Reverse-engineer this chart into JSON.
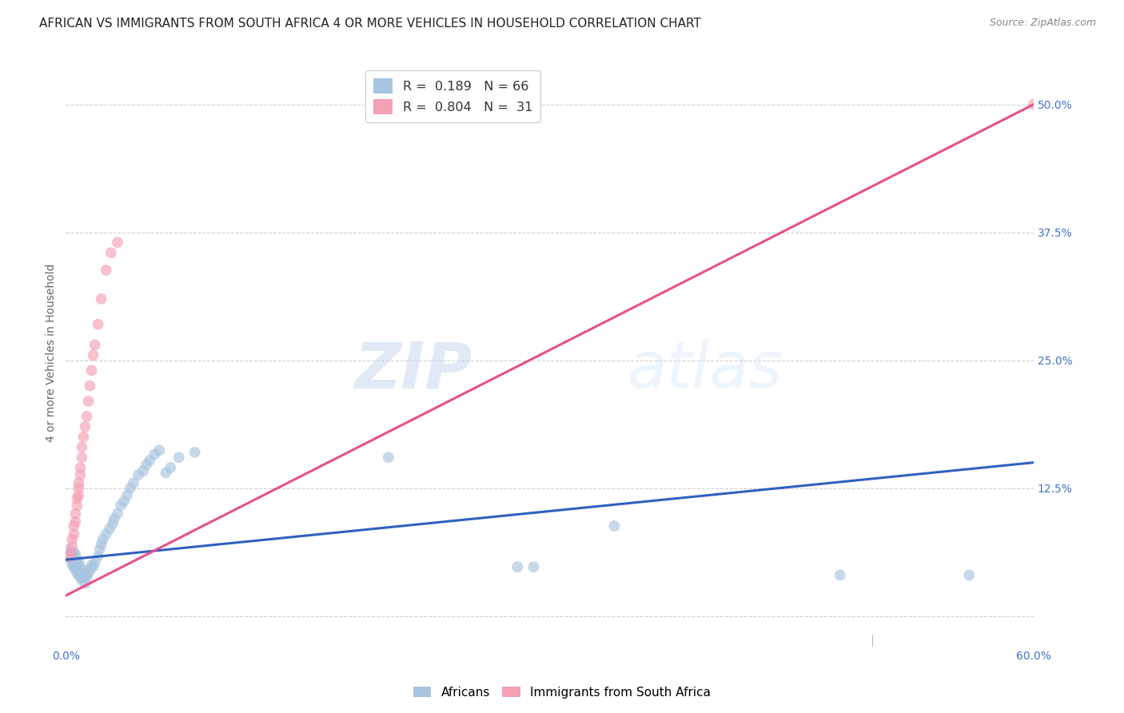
{
  "title": "AFRICAN VS IMMIGRANTS FROM SOUTH AFRICA 4 OR MORE VEHICLES IN HOUSEHOLD CORRELATION CHART",
  "source": "Source: ZipAtlas.com",
  "ylabel": "4 or more Vehicles in Household",
  "xlim": [
    0.0,
    0.6
  ],
  "ylim": [
    -0.03,
    0.545
  ],
  "xticks": [
    0.0,
    0.1,
    0.2,
    0.3,
    0.4,
    0.5,
    0.6
  ],
  "yticks": [
    0.0,
    0.125,
    0.25,
    0.375,
    0.5
  ],
  "ytick_labels": [
    "",
    "12.5%",
    "25.0%",
    "37.5%",
    "50.0%"
  ],
  "xtick_labels": [
    "0.0%",
    "",
    "",
    "",
    "",
    "",
    "60.0%"
  ],
  "africans_R": 0.189,
  "africans_N": 66,
  "immigrants_R": 0.804,
  "immigrants_N": 31,
  "africans_color": "#a8c4e0",
  "immigrants_color": "#f4a0b5",
  "line_african_color": "#3060c0",
  "line_immigrant_color": "#e8508a",
  "legend_label_african": "Africans",
  "legend_label_immigrant": "Immigrants from South Africa",
  "watermark_zip": "ZIP",
  "watermark_atlas": "atlas",
  "background_color": "#ffffff",
  "grid_color": "#d0d0d0",
  "tick_color": "#4472c4",
  "title_fontsize": 11,
  "marker_size": 100,
  "africans_x": [
    0.002,
    0.003,
    0.003,
    0.004,
    0.004,
    0.004,
    0.005,
    0.005,
    0.005,
    0.005,
    0.006,
    0.006,
    0.006,
    0.006,
    0.006,
    0.007,
    0.007,
    0.007,
    0.008,
    0.008,
    0.008,
    0.009,
    0.009,
    0.009,
    0.01,
    0.01,
    0.011,
    0.011,
    0.012,
    0.012,
    0.013,
    0.014,
    0.015,
    0.016,
    0.017,
    0.018,
    0.02,
    0.021,
    0.022,
    0.023,
    0.025,
    0.027,
    0.029,
    0.03,
    0.032,
    0.034,
    0.036,
    0.038,
    0.04,
    0.042,
    0.045,
    0.048,
    0.05,
    0.052,
    0.055,
    0.058,
    0.062,
    0.065,
    0.07,
    0.08,
    0.2,
    0.28,
    0.29,
    0.34,
    0.48,
    0.56
  ],
  "africans_y": [
    0.065,
    0.055,
    0.06,
    0.05,
    0.055,
    0.062,
    0.048,
    0.052,
    0.058,
    0.062,
    0.045,
    0.048,
    0.052,
    0.055,
    0.06,
    0.042,
    0.048,
    0.055,
    0.04,
    0.045,
    0.052,
    0.038,
    0.042,
    0.048,
    0.035,
    0.04,
    0.038,
    0.045,
    0.032,
    0.04,
    0.038,
    0.042,
    0.045,
    0.05,
    0.048,
    0.052,
    0.058,
    0.065,
    0.07,
    0.075,
    0.08,
    0.085,
    0.09,
    0.095,
    0.1,
    0.108,
    0.112,
    0.118,
    0.125,
    0.13,
    0.138,
    0.142,
    0.148,
    0.152,
    0.158,
    0.162,
    0.14,
    0.145,
    0.155,
    0.16,
    0.155,
    0.048,
    0.048,
    0.088,
    0.04,
    0.04
  ],
  "immigrants_x": [
    0.002,
    0.003,
    0.004,
    0.004,
    0.005,
    0.005,
    0.006,
    0.006,
    0.007,
    0.007,
    0.008,
    0.008,
    0.008,
    0.009,
    0.009,
    0.01,
    0.01,
    0.011,
    0.012,
    0.013,
    0.014,
    0.015,
    0.016,
    0.017,
    0.018,
    0.02,
    0.022,
    0.025,
    0.028,
    0.032,
    0.6
  ],
  "immigrants_y": [
    0.058,
    0.062,
    0.068,
    0.075,
    0.08,
    0.088,
    0.092,
    0.1,
    0.108,
    0.115,
    0.118,
    0.125,
    0.13,
    0.138,
    0.145,
    0.155,
    0.165,
    0.175,
    0.185,
    0.195,
    0.21,
    0.225,
    0.24,
    0.255,
    0.265,
    0.285,
    0.31,
    0.338,
    0.355,
    0.365,
    0.5
  ]
}
